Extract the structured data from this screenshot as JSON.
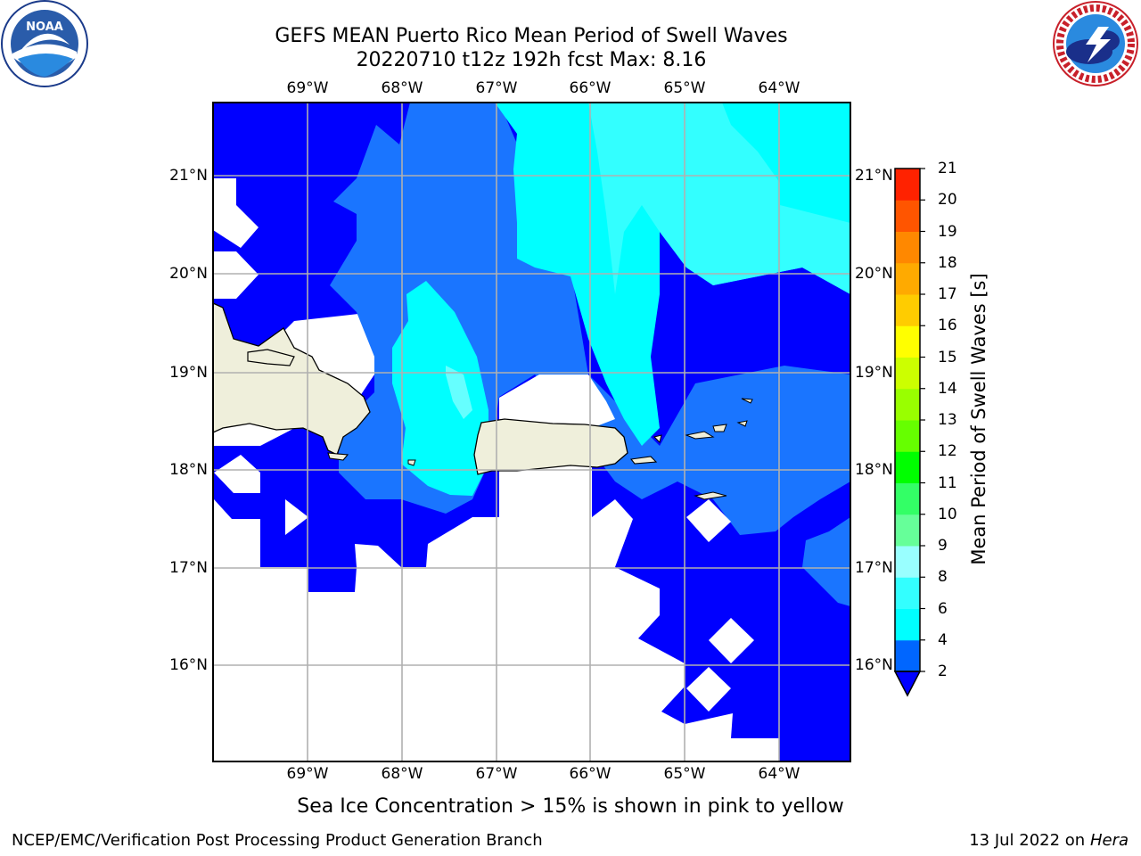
{
  "title_line1": "GEFS MEAN Puerto Rico Mean Period of Swell Waves",
  "title_line2": "20220710 t12z 192h fcst   Max: 8.16",
  "note": "Sea Ice Concentration > 15% is shown in pink to yellow",
  "footer_left": "NCEP/EMC/Verification Post Processing Product Generation Branch",
  "footer_date": "13 Jul 2022 on",
  "footer_host": "Hera",
  "logo_left": "noaa-logo",
  "logo_left_text": "NOAA",
  "logo_right": "nws-logo",
  "map": {
    "lon_labels": [
      "69°W",
      "68°W",
      "67°W",
      "66°W",
      "65°W",
      "64°W"
    ],
    "lat_labels": [
      "21°N",
      "20°N",
      "19°N",
      "18°N",
      "17°N",
      "16°N"
    ],
    "land_color": "#efefdb",
    "grid_color": "#b0b0b0"
  },
  "colorbar": {
    "label": "Mean Period of Swell Waves [s]",
    "ticks": [
      "2",
      "4",
      "6",
      "8",
      "9",
      "10",
      "11",
      "12",
      "13",
      "14",
      "15",
      "16",
      "17",
      "18",
      "19",
      "20",
      "21"
    ],
    "colors": [
      "#0066ff",
      "#00ffff",
      "#33ffff",
      "#99ffff",
      "#66ff99",
      "#33ff66",
      "#00ff00",
      "#66ff00",
      "#99ff00",
      "#ccff00",
      "#ffff00",
      "#ffcc00",
      "#ffaa00",
      "#ff8800",
      "#ff5500",
      "#ff2200"
    ],
    "under_color": "#0000ff"
  }
}
